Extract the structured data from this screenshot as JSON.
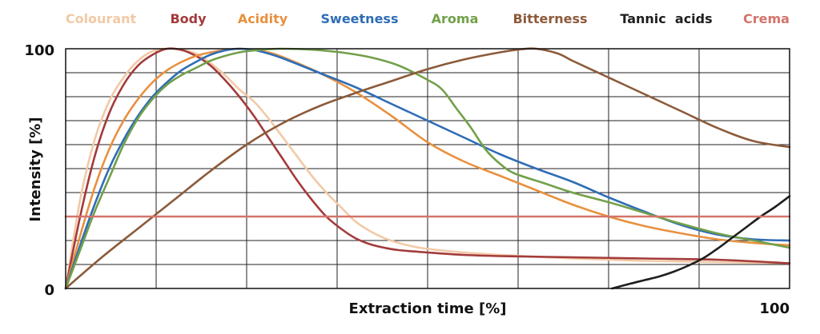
{
  "chart_data": {
    "type": "line",
    "title": "",
    "xlabel": "Extraction time [%]",
    "ylabel": "Intensity [%]",
    "xlim": [
      0,
      100
    ],
    "ylim": [
      0,
      100
    ],
    "tick_labels": {
      "y_top": "100",
      "y_bottom": "0",
      "x_right": "100"
    },
    "grid": true,
    "grid_x_step": 12.5,
    "grid_y_step": 10,
    "legend_position": "top",
    "series": [
      {
        "key": "colourant",
        "name": "Colourant",
        "color": "#f2c9a6",
        "points": [
          [
            0,
            0
          ],
          [
            2,
            37
          ],
          [
            4,
            62
          ],
          [
            6,
            78
          ],
          [
            8,
            88
          ],
          [
            10,
            95
          ],
          [
            12,
            99
          ],
          [
            14,
            100
          ],
          [
            16,
            99.5
          ],
          [
            18,
            98
          ],
          [
            20,
            94
          ],
          [
            22,
            89
          ],
          [
            24,
            83
          ],
          [
            26,
            78
          ],
          [
            28,
            71
          ],
          [
            30,
            63
          ],
          [
            32,
            55
          ],
          [
            34,
            47
          ],
          [
            36,
            40
          ],
          [
            38,
            34
          ],
          [
            40,
            28
          ],
          [
            42,
            24
          ],
          [
            44,
            21
          ],
          [
            46,
            19
          ],
          [
            48,
            17.5
          ],
          [
            50,
            16.5
          ],
          [
            55,
            15
          ],
          [
            60,
            14
          ],
          [
            70,
            12.5
          ],
          [
            80,
            11.5
          ],
          [
            90,
            11
          ],
          [
            100,
            10.5
          ]
        ]
      },
      {
        "key": "body",
        "name": "Body",
        "color": "#a33b3b",
        "points": [
          [
            0,
            0
          ],
          [
            2,
            30
          ],
          [
            4,
            55
          ],
          [
            6,
            73
          ],
          [
            8,
            85
          ],
          [
            10,
            93
          ],
          [
            12,
            97.5
          ],
          [
            14,
            100
          ],
          [
            16,
            99.5
          ],
          [
            18,
            97
          ],
          [
            20,
            93
          ],
          [
            22,
            87
          ],
          [
            24,
            80
          ],
          [
            26,
            72
          ],
          [
            28,
            63
          ],
          [
            30,
            54
          ],
          [
            32,
            45
          ],
          [
            34,
            37
          ],
          [
            36,
            30
          ],
          [
            38,
            25
          ],
          [
            40,
            21
          ],
          [
            42,
            18.5
          ],
          [
            44,
            17
          ],
          [
            46,
            16
          ],
          [
            50,
            15
          ],
          [
            55,
            14
          ],
          [
            60,
            13.5
          ],
          [
            70,
            13
          ],
          [
            80,
            12.5
          ],
          [
            90,
            12
          ],
          [
            100,
            10.5
          ]
        ]
      },
      {
        "key": "acidity",
        "name": "Acidity",
        "color": "#e8913f",
        "points": [
          [
            0,
            0
          ],
          [
            2,
            22
          ],
          [
            4,
            42
          ],
          [
            6,
            58
          ],
          [
            8,
            70
          ],
          [
            10,
            79
          ],
          [
            12,
            86
          ],
          [
            14,
            91
          ],
          [
            16,
            94.5
          ],
          [
            18,
            97
          ],
          [
            20,
            98.5
          ],
          [
            22,
            99.5
          ],
          [
            24,
            100
          ],
          [
            26,
            99.5
          ],
          [
            28,
            98.5
          ],
          [
            30,
            96.5
          ],
          [
            35,
            90
          ],
          [
            40,
            82
          ],
          [
            45,
            72
          ],
          [
            50,
            61
          ],
          [
            55,
            53
          ],
          [
            60,
            47
          ],
          [
            65,
            41
          ],
          [
            70,
            35
          ],
          [
            75,
            30
          ],
          [
            80,
            26
          ],
          [
            85,
            23
          ],
          [
            90,
            20.5
          ],
          [
            95,
            19
          ],
          [
            100,
            18
          ]
        ]
      },
      {
        "key": "sweetness",
        "name": "Sweetness",
        "color": "#2f6db5",
        "points": [
          [
            0,
            0
          ],
          [
            2,
            18
          ],
          [
            4,
            35
          ],
          [
            6,
            50
          ],
          [
            8,
            62
          ],
          [
            10,
            72
          ],
          [
            12,
            80
          ],
          [
            14,
            86
          ],
          [
            16,
            91
          ],
          [
            18,
            94.5
          ],
          [
            20,
            97.5
          ],
          [
            22,
            99.3
          ],
          [
            24,
            100
          ],
          [
            26,
            99.5
          ],
          [
            28,
            98
          ],
          [
            30,
            96
          ],
          [
            35,
            90
          ],
          [
            40,
            84
          ],
          [
            45,
            77
          ],
          [
            50,
            70
          ],
          [
            55,
            63
          ],
          [
            60,
            56
          ],
          [
            65,
            50
          ],
          [
            70,
            44.5
          ],
          [
            75,
            38
          ],
          [
            80,
            32
          ],
          [
            85,
            26.5
          ],
          [
            90,
            22.5
          ],
          [
            95,
            20.5
          ],
          [
            100,
            20
          ]
        ]
      },
      {
        "key": "aroma",
        "name": "Aroma",
        "color": "#72a04a",
        "points": [
          [
            0,
            0
          ],
          [
            2,
            16
          ],
          [
            4,
            32
          ],
          [
            6,
            46
          ],
          [
            8,
            60
          ],
          [
            10,
            71
          ],
          [
            12,
            79
          ],
          [
            14,
            85
          ],
          [
            16,
            89
          ],
          [
            18,
            92
          ],
          [
            20,
            95
          ],
          [
            22,
            97
          ],
          [
            24,
            98.5
          ],
          [
            26,
            99.3
          ],
          [
            28,
            99.8
          ],
          [
            30,
            100
          ],
          [
            34,
            99.6
          ],
          [
            38,
            98.5
          ],
          [
            42,
            96.5
          ],
          [
            46,
            93
          ],
          [
            50,
            87
          ],
          [
            52,
            83
          ],
          [
            54,
            75
          ],
          [
            56,
            67
          ],
          [
            58,
            58
          ],
          [
            60,
            52
          ],
          [
            62,
            48
          ],
          [
            66,
            44
          ],
          [
            70,
            40
          ],
          [
            75,
            36
          ],
          [
            80,
            31.5
          ],
          [
            85,
            27
          ],
          [
            90,
            23
          ],
          [
            95,
            20
          ],
          [
            100,
            17
          ]
        ]
      },
      {
        "key": "bitterness",
        "name": "Bitterness",
        "color": "#8c5a3a",
        "points": [
          [
            0,
            0
          ],
          [
            5,
            13
          ],
          [
            10,
            25
          ],
          [
            15,
            37
          ],
          [
            20,
            49
          ],
          [
            25,
            60
          ],
          [
            30,
            69
          ],
          [
            35,
            76
          ],
          [
            40,
            81.5
          ],
          [
            45,
            86.5
          ],
          [
            50,
            91.5
          ],
          [
            55,
            95.5
          ],
          [
            60,
            98.5
          ],
          [
            63,
            99.8
          ],
          [
            65,
            100
          ],
          [
            68,
            98
          ],
          [
            70,
            95
          ],
          [
            75,
            88
          ],
          [
            80,
            81
          ],
          [
            85,
            74
          ],
          [
            90,
            67
          ],
          [
            95,
            61.5
          ],
          [
            100,
            59
          ]
        ]
      },
      {
        "key": "tannic_acids",
        "name": "Tannic  acids",
        "color": "#1e1e1e",
        "points": [
          [
            75.5,
            0
          ],
          [
            78,
            2
          ],
          [
            80,
            3.5
          ],
          [
            82,
            5
          ],
          [
            84,
            7
          ],
          [
            86,
            9.5
          ],
          [
            88,
            12.5
          ],
          [
            90,
            16.5
          ],
          [
            92,
            21
          ],
          [
            94,
            25.5
          ],
          [
            96,
            30
          ],
          [
            98,
            34
          ],
          [
            100,
            38.5
          ]
        ]
      },
      {
        "key": "crema",
        "name": "Crema",
        "color": "#d4736a",
        "points": [
          [
            0,
            30
          ],
          [
            100,
            30
          ]
        ]
      }
    ]
  }
}
